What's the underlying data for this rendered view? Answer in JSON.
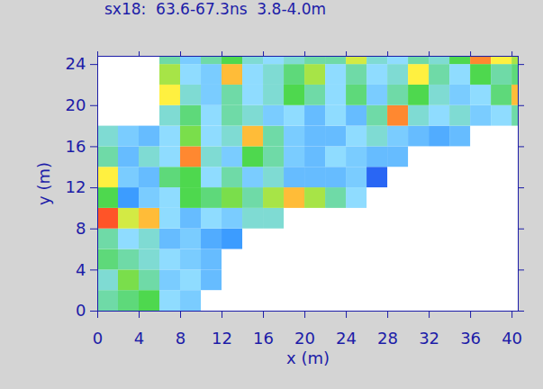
{
  "chart_data": {
    "type": "heatmap",
    "title": "sx18:  63.6-67.3ns  3.8-4.0m",
    "x_label": "x (m)",
    "y_label": "y (m)",
    "xlim": [
      0,
      40.6
    ],
    "ylim": [
      0,
      24.8
    ],
    "xticks": [
      0,
      4,
      8,
      12,
      16,
      20,
      24,
      28,
      32,
      36,
      40
    ],
    "yticks": [
      0,
      4,
      8,
      12,
      16,
      20,
      24
    ],
    "x": [
      1,
      3,
      5,
      7,
      9,
      11,
      13,
      15,
      17,
      19,
      21,
      23,
      25,
      27,
      29,
      31,
      33,
      35,
      37,
      39,
      41
    ],
    "y": [
      1,
      3,
      5,
      7,
      9,
      11,
      13,
      15,
      17,
      19,
      21,
      23,
      25
    ],
    "cells": [
      [
        0.5,
        0.55,
        0.6,
        0.4,
        0.35,
        null,
        null,
        null,
        null,
        null,
        null,
        null,
        null,
        null,
        null,
        null,
        null,
        null,
        null,
        null,
        null
      ],
      [
        0.45,
        0.65,
        0.5,
        0.35,
        0.4,
        0.3,
        null,
        null,
        null,
        null,
        null,
        null,
        null,
        null,
        null,
        null,
        null,
        null,
        null,
        null,
        null
      ],
      [
        0.55,
        0.5,
        0.45,
        0.4,
        0.35,
        0.3,
        null,
        null,
        null,
        null,
        null,
        null,
        null,
        null,
        null,
        null,
        null,
        null,
        null,
        null,
        null
      ],
      [
        0.5,
        0.4,
        0.45,
        0.3,
        0.35,
        0.25,
        0.2,
        null,
        null,
        null,
        null,
        null,
        null,
        null,
        null,
        null,
        null,
        null,
        null,
        null,
        null
      ],
      [
        0.95,
        0.75,
        0.85,
        0.4,
        0.3,
        0.4,
        0.35,
        0.45,
        0.45,
        null,
        null,
        null,
        null,
        null,
        null,
        null,
        null,
        null,
        null,
        null,
        null
      ],
      [
        0.6,
        0.2,
        0.35,
        0.4,
        0.6,
        0.55,
        0.65,
        0.5,
        0.7,
        0.85,
        0.7,
        0.5,
        0.4,
        null,
        null,
        null,
        null,
        null,
        null,
        null,
        null
      ],
      [
        0.8,
        0.35,
        0.3,
        0.55,
        0.6,
        0.4,
        0.5,
        0.35,
        0.45,
        0.3,
        0.3,
        0.3,
        0.35,
        0.1,
        null,
        null,
        null,
        null,
        null,
        null,
        null
      ],
      [
        0.5,
        0.3,
        0.45,
        0.4,
        0.9,
        0.45,
        0.35,
        0.6,
        0.5,
        0.35,
        0.3,
        0.4,
        0.35,
        0.3,
        0.3,
        null,
        null,
        null,
        null,
        null,
        null
      ],
      [
        0.45,
        0.35,
        0.3,
        0.4,
        0.65,
        0.4,
        0.45,
        0.85,
        0.5,
        0.35,
        0.3,
        0.3,
        0.4,
        0.45,
        0.35,
        0.3,
        0.25,
        0.3,
        null,
        null,
        null
      ],
      [
        null,
        null,
        null,
        0.45,
        0.55,
        0.4,
        0.5,
        0.45,
        0.35,
        0.4,
        0.3,
        0.4,
        0.3,
        0.5,
        0.9,
        0.45,
        0.4,
        0.45,
        0.35,
        0.4,
        0.5
      ],
      [
        null,
        null,
        null,
        0.8,
        0.45,
        0.35,
        0.5,
        0.4,
        0.45,
        0.6,
        0.5,
        0.4,
        0.55,
        0.35,
        0.5,
        0.6,
        0.45,
        0.35,
        0.4,
        0.55,
        0.85
      ],
      [
        null,
        null,
        null,
        0.7,
        0.4,
        0.35,
        0.85,
        0.4,
        0.45,
        0.55,
        0.7,
        0.4,
        0.5,
        0.4,
        0.45,
        0.8,
        0.5,
        0.4,
        0.6,
        0.5,
        0.55
      ],
      [
        null,
        null,
        null,
        0.5,
        0.35,
        0.5,
        0.6,
        0.45,
        0.4,
        0.45,
        0.5,
        0.5,
        0.75,
        0.45,
        0.4,
        0.5,
        0.45,
        0.6,
        0.9,
        0.8,
        0.7
      ]
    ],
    "color_range": [
      0,
      1
    ]
  }
}
